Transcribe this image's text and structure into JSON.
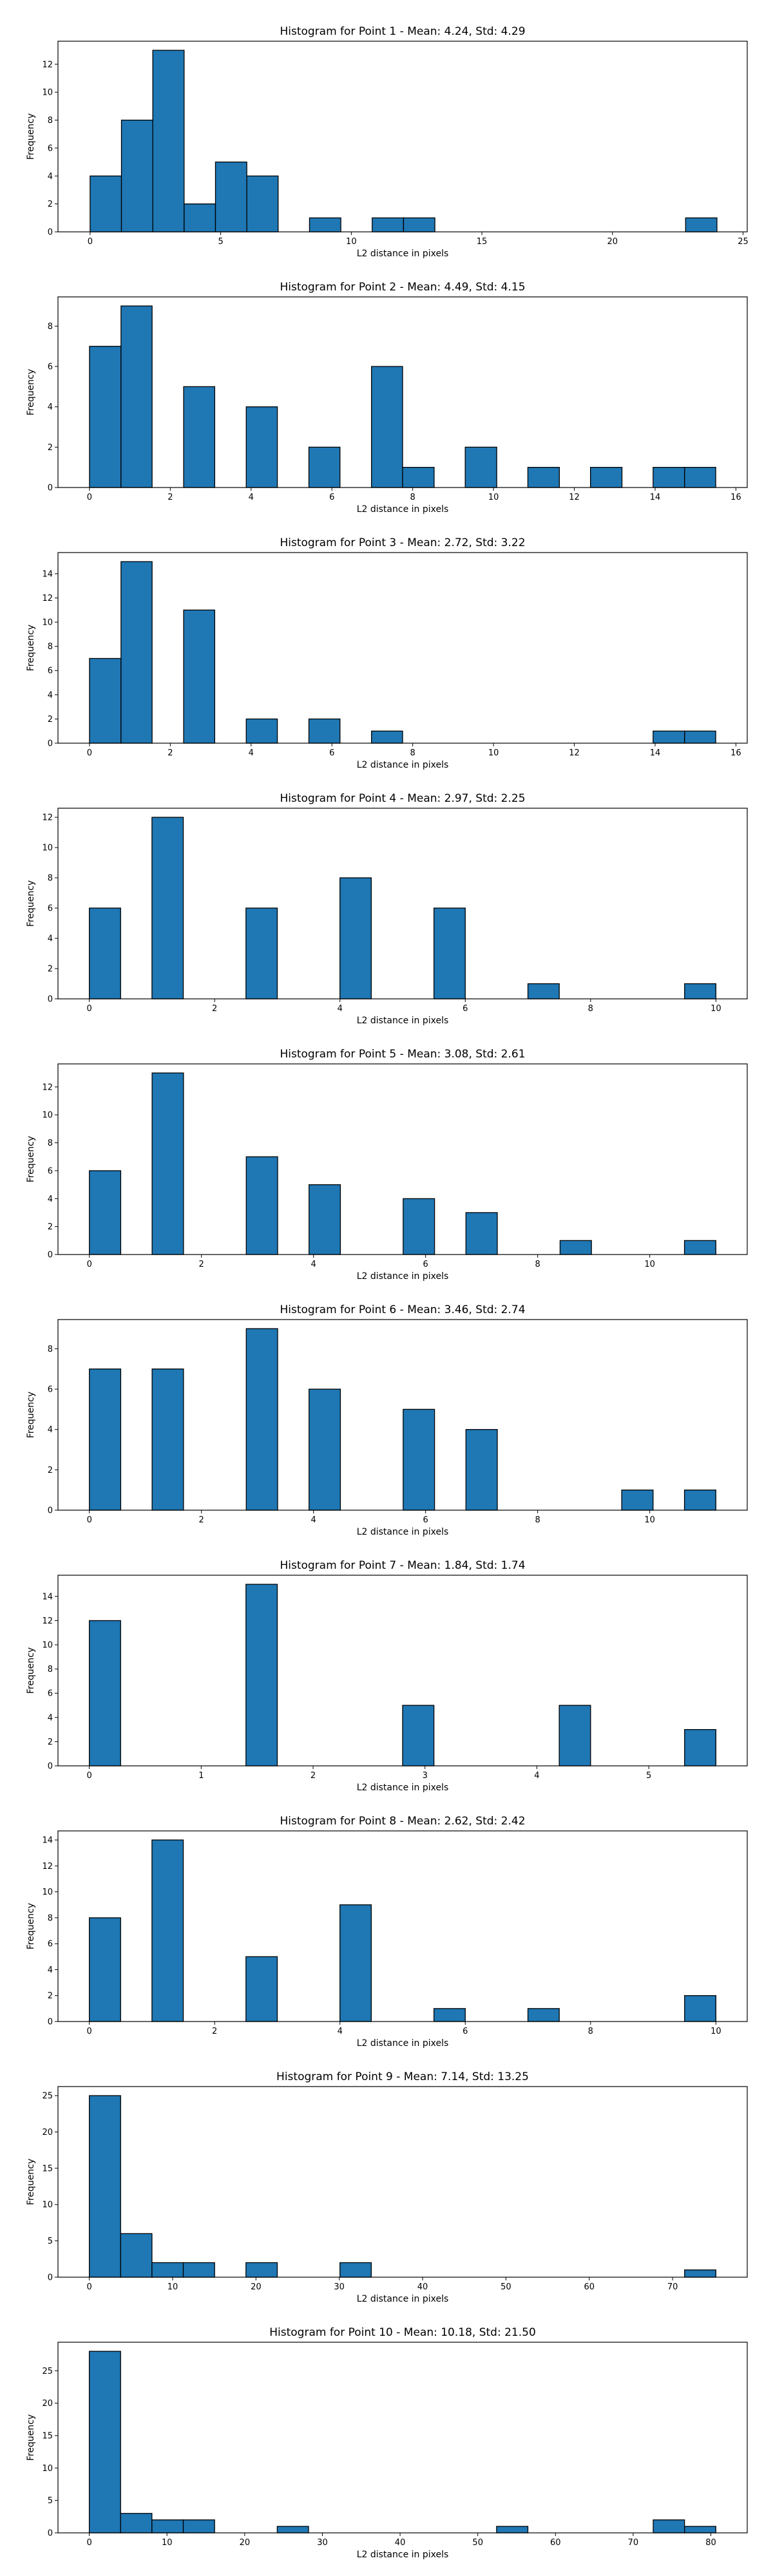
{
  "style": {
    "bar_color": "#1f77b4",
    "edge_color": "#000000",
    "background": "#ffffff"
  },
  "chart_data": [
    {
      "type": "bar",
      "title": "Histogram for Point 1 - Mean: 4.24, Std: 4.29",
      "xlabel": "L2 distance in pixels",
      "ylabel": "Frequency",
      "xlim": [
        -1.23,
        25.16
      ],
      "ylim": [
        0,
        13.65
      ],
      "xticks": [
        "0",
        "5",
        "10",
        "15",
        "20",
        "25"
      ],
      "xtick_values": [
        0,
        5,
        10,
        15,
        20,
        25
      ],
      "yticks": [
        "0",
        "2",
        "4",
        "6",
        "8",
        "10",
        "12"
      ],
      "ytick_values": [
        0,
        2,
        4,
        6,
        8,
        10,
        12
      ],
      "bins": [
        [
          0.0,
          1.2,
          4
        ],
        [
          1.2,
          2.4,
          8
        ],
        [
          2.4,
          3.6,
          13
        ],
        [
          3.6,
          4.8,
          2
        ],
        [
          4.8,
          6.0,
          5
        ],
        [
          6.0,
          7.2,
          4
        ],
        [
          8.4,
          9.6,
          1
        ],
        [
          10.8,
          12.0,
          1
        ],
        [
          12.0,
          13.2,
          1
        ],
        [
          22.8,
          24.0,
          1
        ]
      ]
    },
    {
      "type": "bar",
      "title": "Histogram for Point 2 - Mean: 4.49, Std: 4.15",
      "xlabel": "L2 distance in pixels",
      "ylabel": "Frequency",
      "xlim": [
        -0.78,
        16.28
      ],
      "ylim": [
        0,
        9.45
      ],
      "xticks": [
        "0",
        "2",
        "4",
        "6",
        "8",
        "10",
        "12",
        "14",
        "16"
      ],
      "xtick_values": [
        0,
        2,
        4,
        6,
        8,
        10,
        12,
        14,
        16
      ],
      "yticks": [
        "0",
        "2",
        "4",
        "6",
        "8"
      ],
      "ytick_values": [
        0,
        2,
        4,
        6,
        8
      ],
      "bins": [
        [
          0.0,
          0.78,
          7
        ],
        [
          0.78,
          1.55,
          9
        ],
        [
          2.33,
          3.1,
          5
        ],
        [
          3.88,
          4.65,
          4
        ],
        [
          5.43,
          6.2,
          2
        ],
        [
          6.98,
          7.75,
          6
        ],
        [
          7.75,
          8.53,
          1
        ],
        [
          9.3,
          10.08,
          2
        ],
        [
          10.85,
          11.63,
          1
        ],
        [
          12.4,
          13.18,
          1
        ],
        [
          13.95,
          14.73,
          1
        ],
        [
          14.73,
          15.5,
          1
        ]
      ]
    },
    {
      "type": "bar",
      "title": "Histogram for Point 3 - Mean: 2.72, Std: 3.22",
      "xlabel": "L2 distance in pixels",
      "ylabel": "Frequency",
      "xlim": [
        -0.78,
        16.28
      ],
      "ylim": [
        0,
        15.75
      ],
      "xticks": [
        "0",
        "2",
        "4",
        "6",
        "8",
        "10",
        "12",
        "14",
        "16"
      ],
      "xtick_values": [
        0,
        2,
        4,
        6,
        8,
        10,
        12,
        14,
        16
      ],
      "yticks": [
        "0",
        "2",
        "4",
        "6",
        "8",
        "10",
        "12",
        "14"
      ],
      "ytick_values": [
        0,
        2,
        4,
        6,
        8,
        10,
        12,
        14
      ],
      "bins": [
        [
          0.0,
          0.78,
          7
        ],
        [
          0.78,
          1.55,
          15
        ],
        [
          2.33,
          3.1,
          11
        ],
        [
          3.88,
          4.65,
          2
        ],
        [
          5.43,
          6.2,
          2
        ],
        [
          6.98,
          7.75,
          1
        ],
        [
          13.95,
          14.73,
          1
        ],
        [
          14.73,
          15.5,
          1
        ]
      ]
    },
    {
      "type": "bar",
      "title": "Histogram for Point 4 - Mean: 2.97, Std: 2.25",
      "xlabel": "L2 distance in pixels",
      "ylabel": "Frequency",
      "xlim": [
        -0.5,
        10.5
      ],
      "ylim": [
        0,
        12.6
      ],
      "xticks": [
        "0",
        "2",
        "4",
        "6",
        "8",
        "10"
      ],
      "xtick_values": [
        0,
        2,
        4,
        6,
        8,
        10
      ],
      "yticks": [
        "0",
        "2",
        "4",
        "6",
        "8",
        "10",
        "12"
      ],
      "ytick_values": [
        0,
        2,
        4,
        6,
        8,
        10,
        12
      ],
      "bins": [
        [
          0.0,
          0.5,
          6
        ],
        [
          1.0,
          1.5,
          12
        ],
        [
          2.5,
          3.0,
          6
        ],
        [
          4.0,
          4.5,
          8
        ],
        [
          5.5,
          6.0,
          6
        ],
        [
          7.0,
          7.5,
          1
        ],
        [
          9.5,
          10.0,
          1
        ]
      ]
    },
    {
      "type": "bar",
      "title": "Histogram for Point 5 - Mean: 3.08, Std: 2.61",
      "xlabel": "L2 distance in pixels",
      "ylabel": "Frequency",
      "xlim": [
        -0.56,
        11.74
      ],
      "ylim": [
        0,
        13.65
      ],
      "xticks": [
        "0",
        "2",
        "4",
        "6",
        "8",
        "10"
      ],
      "xtick_values": [
        0,
        2,
        4,
        6,
        8,
        10
      ],
      "yticks": [
        "0",
        "2",
        "4",
        "6",
        "8",
        "10",
        "12"
      ],
      "ytick_values": [
        0,
        2,
        4,
        6,
        8,
        10,
        12
      ],
      "bins": [
        [
          0.0,
          0.56,
          6
        ],
        [
          1.12,
          1.68,
          13
        ],
        [
          2.8,
          3.36,
          7
        ],
        [
          3.92,
          4.48,
          5
        ],
        [
          5.6,
          6.16,
          4
        ],
        [
          6.72,
          7.28,
          3
        ],
        [
          8.4,
          8.96,
          1
        ],
        [
          10.62,
          11.18,
          1
        ]
      ]
    },
    {
      "type": "bar",
      "title": "Histogram for Point 6 - Mean: 3.46, Std: 2.74",
      "xlabel": "L2 distance in pixels",
      "ylabel": "Frequency",
      "xlim": [
        -0.56,
        11.74
      ],
      "ylim": [
        0,
        9.45
      ],
      "xticks": [
        "0",
        "2",
        "4",
        "6",
        "8",
        "10"
      ],
      "xtick_values": [
        0,
        2,
        4,
        6,
        8,
        10
      ],
      "yticks": [
        "0",
        "2",
        "4",
        "6",
        "8"
      ],
      "ytick_values": [
        0,
        2,
        4,
        6,
        8
      ],
      "bins": [
        [
          0.0,
          0.56,
          7
        ],
        [
          1.12,
          1.68,
          7
        ],
        [
          2.8,
          3.36,
          9
        ],
        [
          3.92,
          4.48,
          6
        ],
        [
          5.6,
          6.16,
          5
        ],
        [
          6.72,
          7.28,
          4
        ],
        [
          9.5,
          10.06,
          1
        ],
        [
          10.62,
          11.18,
          1
        ]
      ]
    },
    {
      "type": "bar",
      "title": "Histogram for Point 7 - Mean: 1.84, Std: 1.74",
      "xlabel": "L2 distance in pixels",
      "ylabel": "Frequency",
      "xlim": [
        -0.28,
        5.88
      ],
      "ylim": [
        0,
        15.75
      ],
      "xticks": [
        "0",
        "1",
        "2",
        "3",
        "4",
        "5"
      ],
      "xtick_values": [
        0,
        1,
        2,
        3,
        4,
        5
      ],
      "yticks": [
        "0",
        "2",
        "4",
        "6",
        "8",
        "10",
        "12",
        "14"
      ],
      "ytick_values": [
        0,
        2,
        4,
        6,
        8,
        10,
        12,
        14
      ],
      "bins": [
        [
          0.0,
          0.28,
          12
        ],
        [
          1.4,
          1.68,
          15
        ],
        [
          2.8,
          3.08,
          5
        ],
        [
          4.2,
          4.48,
          5
        ],
        [
          5.32,
          5.6,
          3
        ]
      ]
    },
    {
      "type": "bar",
      "title": "Histogram for Point 8 - Mean: 2.62, Std: 2.42",
      "xlabel": "L2 distance in pixels",
      "ylabel": "Frequency",
      "xlim": [
        -0.5,
        10.5
      ],
      "ylim": [
        0,
        14.7
      ],
      "xticks": [
        "0",
        "2",
        "4",
        "6",
        "8",
        "10"
      ],
      "xtick_values": [
        0,
        2,
        4,
        6,
        8,
        10
      ],
      "yticks": [
        "0",
        "2",
        "4",
        "6",
        "8",
        "10",
        "12",
        "14"
      ],
      "ytick_values": [
        0,
        2,
        4,
        6,
        8,
        10,
        12,
        14
      ],
      "bins": [
        [
          0.0,
          0.5,
          8
        ],
        [
          1.0,
          1.5,
          14
        ],
        [
          2.5,
          3.0,
          5
        ],
        [
          4.0,
          4.5,
          9
        ],
        [
          5.5,
          6.0,
          1
        ],
        [
          7.0,
          7.5,
          1
        ],
        [
          9.5,
          10.0,
          2
        ]
      ]
    },
    {
      "type": "bar",
      "title": "Histogram for Point 9 - Mean: 7.14, Std: 13.25",
      "xlabel": "L2 distance in pixels",
      "ylabel": "Frequency",
      "xlim": [
        -3.76,
        78.96
      ],
      "ylim": [
        0,
        26.25
      ],
      "xticks": [
        "0",
        "10",
        "20",
        "30",
        "40",
        "50",
        "60",
        "70"
      ],
      "xtick_values": [
        0,
        10,
        20,
        30,
        40,
        50,
        60,
        70
      ],
      "yticks": [
        "0",
        "5",
        "10",
        "15",
        "20",
        "25"
      ],
      "ytick_values": [
        0,
        5,
        10,
        15,
        20,
        25
      ],
      "bins": [
        [
          0.0,
          3.76,
          25
        ],
        [
          3.76,
          7.52,
          6
        ],
        [
          7.52,
          11.28,
          2
        ],
        [
          11.28,
          15.04,
          2
        ],
        [
          18.8,
          22.56,
          2
        ],
        [
          30.08,
          33.84,
          2
        ],
        [
          71.44,
          75.2,
          1
        ]
      ]
    },
    {
      "type": "bar",
      "title": "Histogram for Point 10 - Mean: 10.18, Std: 21.50",
      "xlabel": "L2 distance in pixels",
      "ylabel": "Frequency",
      "xlim": [
        -4.03,
        84.68
      ],
      "ylim": [
        0,
        29.4
      ],
      "xticks": [
        "0",
        "10",
        "20",
        "30",
        "40",
        "50",
        "60",
        "70",
        "80"
      ],
      "xtick_values": [
        0,
        10,
        20,
        30,
        40,
        50,
        60,
        70,
        80
      ],
      "yticks": [
        "0",
        "5",
        "10",
        "15",
        "20",
        "25"
      ],
      "ytick_values": [
        0,
        5,
        10,
        15,
        20,
        25
      ],
      "bins": [
        [
          0.0,
          4.03,
          28
        ],
        [
          4.03,
          8.06,
          3
        ],
        [
          8.06,
          12.1,
          2
        ],
        [
          12.1,
          16.13,
          2
        ],
        [
          24.19,
          28.22,
          1
        ],
        [
          52.42,
          56.45,
          1
        ],
        [
          72.58,
          76.61,
          2
        ],
        [
          76.61,
          80.64,
          1
        ]
      ]
    }
  ]
}
